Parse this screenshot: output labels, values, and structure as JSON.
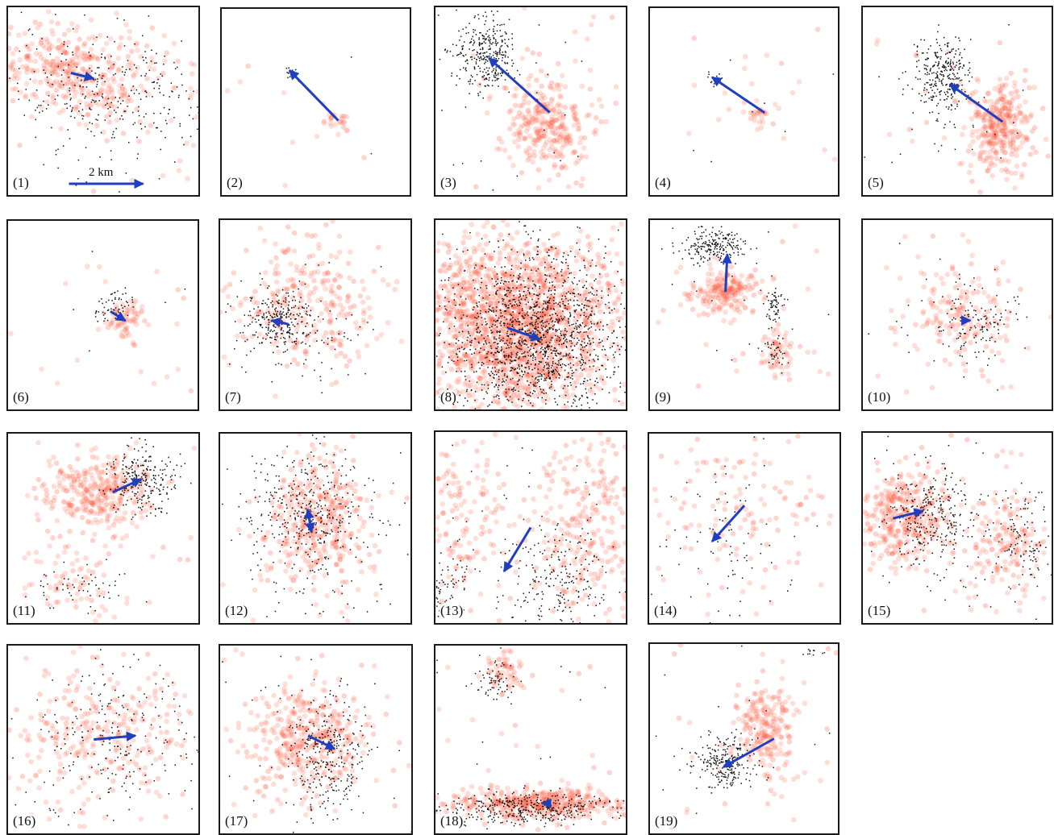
{
  "figure": {
    "panels": [
      {
        "label": "(1)"
      },
      {
        "label": "(2)"
      },
      {
        "label": "(3)"
      },
      {
        "label": "(4)"
      },
      {
        "label": "(5)"
      },
      {
        "label": "(6)"
      },
      {
        "label": "(7)"
      },
      {
        "label": "(8)"
      },
      {
        "label": "(9)"
      },
      {
        "label": "(10)"
      },
      {
        "label": "(11)"
      },
      {
        "label": "(12)"
      },
      {
        "label": "(13)"
      },
      {
        "label": "(14)"
      },
      {
        "label": "(15)"
      },
      {
        "label": "(16)"
      },
      {
        "label": "(17)"
      },
      {
        "label": "(18)"
      },
      {
        "label": "(19)"
      }
    ],
    "scale_bar": {
      "label": "2 km"
    },
    "colors": {
      "red_points": "#ff6a4d",
      "red_core": "#ff3b1f",
      "black_points": "#111111",
      "arrow": "#1f3fbf",
      "frame": "#1a1a1a"
    }
  }
}
